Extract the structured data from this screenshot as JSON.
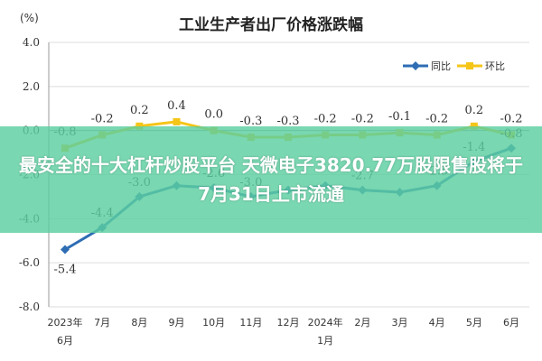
{
  "chart_data": {
    "type": "line",
    "title": "工业生产者出厂价格涨跌幅",
    "unit_label": "(%)",
    "ylim": [
      -8.0,
      4.0
    ],
    "y_ticks": [
      "4.0",
      "2.0",
      "0.0",
      "-2.0",
      "-4.0",
      "-6.0",
      "-8.0"
    ],
    "y_tick_values": [
      4,
      2,
      0,
      -2,
      -4,
      -6,
      -8
    ],
    "categories": [
      [
        "2023年",
        "6月"
      ],
      [
        "7月"
      ],
      [
        "8月"
      ],
      [
        "9月"
      ],
      [
        "10月"
      ],
      [
        "11月"
      ],
      [
        "12月"
      ],
      [
        "2024年",
        "1月"
      ],
      [
        "2月"
      ],
      [
        "3月"
      ],
      [
        "4月"
      ],
      [
        "5月"
      ],
      [
        "6月"
      ]
    ],
    "grid": true,
    "legend_position": "top-right",
    "series": [
      {
        "name": "同比",
        "color": "#2e6db4",
        "marker": "diamond",
        "values": [
          -5.4,
          -4.4,
          -3.0,
          -2.5,
          -2.6,
          -3.0,
          -2.7,
          -2.5,
          -2.7,
          -2.8,
          -2.5,
          -1.4,
          -0.8
        ],
        "labels": [
          "-5.4",
          "-4.4",
          "-3.0",
          "",
          "-2.6",
          "-3.0",
          "",
          "",
          "-2.7",
          "",
          "-2.5",
          "-1.4",
          "-0.8"
        ]
      },
      {
        "name": "环比",
        "color": "#f5c518",
        "marker": "square",
        "values": [
          -0.8,
          -0.2,
          0.2,
          0.4,
          0.0,
          -0.3,
          -0.3,
          -0.2,
          -0.2,
          -0.1,
          -0.2,
          0.2,
          -0.2
        ],
        "labels": [
          "-0.8",
          "-0.2",
          "0.2",
          "0.4",
          "0.0",
          "-0.3",
          "-0.3",
          "-0.2",
          "-0.2",
          "-0.1",
          "-0.2",
          "0.2",
          "-0.2"
        ]
      }
    ]
  },
  "banner": {
    "text": "最安全的十大杠杆炒股平台 天微电子3820.77万股限售股将于7月31日上市流通"
  }
}
